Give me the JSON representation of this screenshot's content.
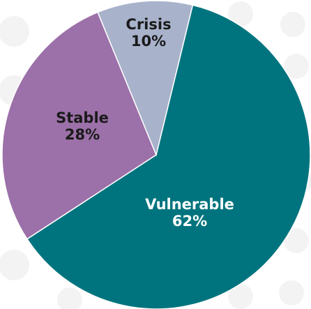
{
  "chart_data": {
    "type": "pie",
    "categories": [
      "Vulnerable",
      "Stable",
      "Crisis"
    ],
    "values": [
      62,
      28,
      10
    ],
    "value_labels": [
      "62%",
      "28%",
      "10%"
    ],
    "colors": [
      "#00747e",
      "#9c70a8",
      "#a8b2cb"
    ],
    "label_colors": [
      "#ffffff",
      "#1a1a1a",
      "#1a1a1a"
    ]
  }
}
